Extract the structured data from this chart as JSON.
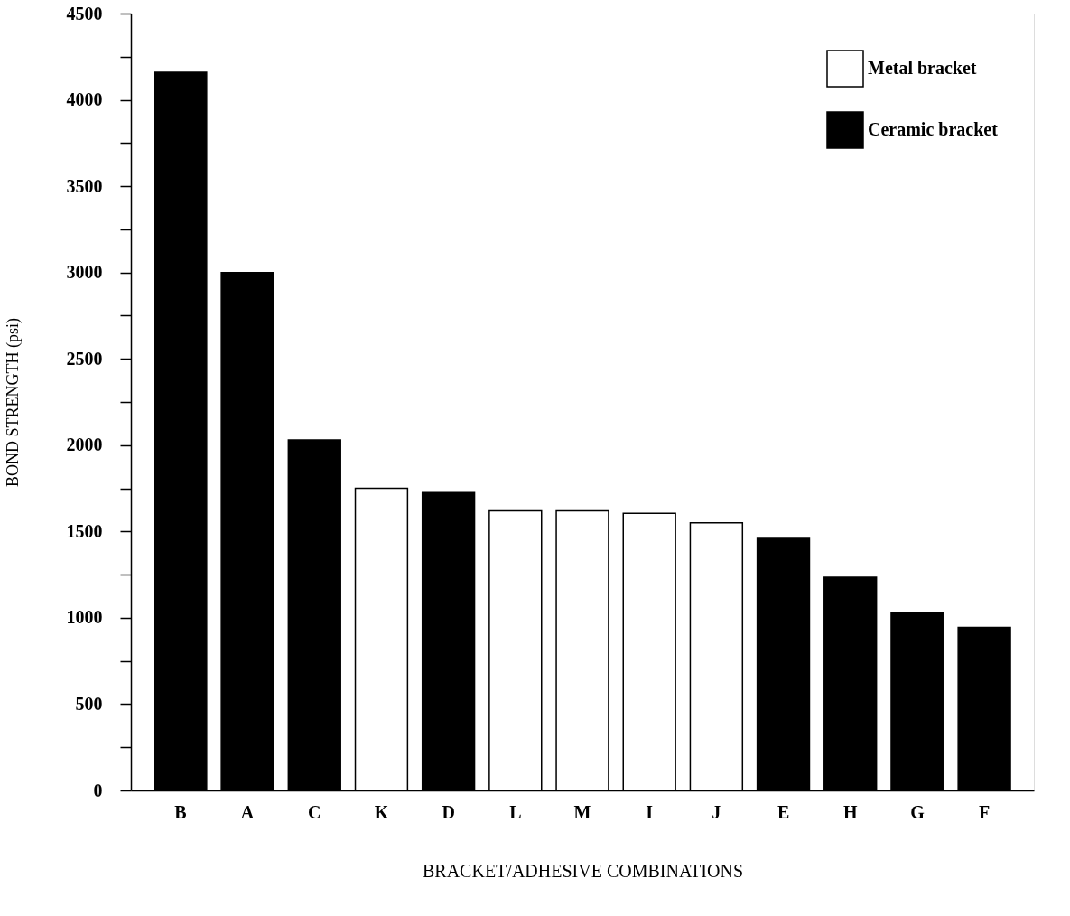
{
  "chart_data": {
    "type": "bar",
    "xlabel": "BRACKET/ADHESIVE COMBINATIONS",
    "ylabel": "BOND STRENGTH (psi)",
    "categories": [
      "B",
      "A",
      "C",
      "K",
      "D",
      "L",
      "M",
      "I",
      "J",
      "E",
      "H",
      "G",
      "F"
    ],
    "series": [
      {
        "name": "Metal bracket",
        "color": "#ffffff",
        "values": [
          null,
          null,
          null,
          1750,
          null,
          1620,
          1620,
          1605,
          1550,
          null,
          null,
          null,
          null
        ]
      },
      {
        "name": "Ceramic bracket",
        "color": "#000000",
        "values": [
          4160,
          3000,
          2030,
          null,
          1725,
          null,
          null,
          null,
          null,
          1460,
          1235,
          1030,
          945
        ]
      }
    ],
    "ylim": [
      0,
      4500
    ],
    "yticks": [
      0,
      {
        "value": 250,
        "label": null
      },
      500,
      {
        "value": 750,
        "label": null
      },
      1000,
      {
        "value": 1250,
        "label": null
      },
      1500,
      {
        "value": 1750,
        "label": null
      },
      2000,
      {
        "value": 2250,
        "label": null
      },
      2500,
      {
        "value": 2750,
        "label": null
      },
      3000,
      {
        "value": 3250,
        "label": null
      },
      3500,
      {
        "value": 3750,
        "label": null
      },
      4000,
      {
        "value": 4250,
        "label": null
      },
      4500
    ],
    "grid": false,
    "legend": "top right"
  }
}
